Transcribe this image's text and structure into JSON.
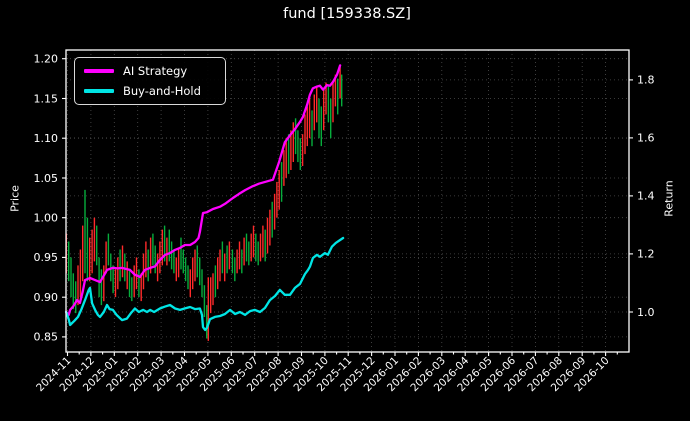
{
  "chart_data": {
    "type": "mixed",
    "title": "fund [159338.SZ]",
    "background_color": "#000000",
    "text_color": "#ffffff",
    "grid_color": "#4d4d4d",
    "spine_color": "#ffffff",
    "x_axis": {
      "tick_labels": [
        "2024-11",
        "2024-12",
        "2025-01",
        "2025-02",
        "2025-03",
        "2025-04",
        "2025-05",
        "2025-06",
        "2025-07",
        "2025-08",
        "2025-09",
        "2025-10",
        "2025-11",
        "2025-12",
        "2026-01",
        "2026-02",
        "2026-03",
        "2026-04",
        "2026-05",
        "2026-06",
        "2026-07",
        "2026-08",
        "2026-09",
        "2026-10"
      ],
      "label_rotation_deg": -45,
      "range": [
        -0.064,
        24.0
      ],
      "minor_tick_step": 0.5
    },
    "left_axis": {
      "label": "Price",
      "ticks": [
        0.85,
        0.9,
        0.95,
        1.0,
        1.05,
        1.1,
        1.15,
        1.2
      ],
      "decimals": 2,
      "range": [
        0.831,
        1.211
      ]
    },
    "right_axis": {
      "label": "Return",
      "ticks": [
        1.0,
        1.2,
        1.4,
        1.6,
        1.8
      ],
      "decimals": 1,
      "range": [
        0.862,
        1.903
      ]
    },
    "legend": {
      "position": "upper-left",
      "entries": [
        "AI Strategy",
        "Buy-and-Hold"
      ]
    },
    "series": [
      {
        "name": "AI Strategy",
        "axis": "right",
        "color": "#ff00ff",
        "points": [
          [
            -0.06,
            1.0
          ],
          [
            0.05,
            0.99
          ],
          [
            0.11,
            1.007
          ],
          [
            0.25,
            1.02
          ],
          [
            0.41,
            1.041
          ],
          [
            0.53,
            1.031
          ],
          [
            0.65,
            1.07
          ],
          [
            0.75,
            1.11
          ],
          [
            0.96,
            1.117
          ],
          [
            1.18,
            1.11
          ],
          [
            1.39,
            1.103
          ],
          [
            1.55,
            1.125
          ],
          [
            1.69,
            1.145
          ],
          [
            1.94,
            1.152
          ],
          [
            2.15,
            1.15
          ],
          [
            2.33,
            1.152
          ],
          [
            2.67,
            1.145
          ],
          [
            2.88,
            1.128
          ],
          [
            3.1,
            1.121
          ],
          [
            3.31,
            1.145
          ],
          [
            3.53,
            1.152
          ],
          [
            3.74,
            1.157
          ],
          [
            3.95,
            1.179
          ],
          [
            4.17,
            1.197
          ],
          [
            4.38,
            1.203
          ],
          [
            4.59,
            1.214
          ],
          [
            4.81,
            1.221
          ],
          [
            5.02,
            1.231
          ],
          [
            5.24,
            1.231
          ],
          [
            5.45,
            1.241
          ],
          [
            5.6,
            1.255
          ],
          [
            5.66,
            1.276
          ],
          [
            5.79,
            1.341
          ],
          [
            5.96,
            1.344
          ],
          [
            6.22,
            1.355
          ],
          [
            6.52,
            1.363
          ],
          [
            6.77,
            1.375
          ],
          [
            7.07,
            1.393
          ],
          [
            7.33,
            1.407
          ],
          [
            7.59,
            1.42
          ],
          [
            7.88,
            1.432
          ],
          [
            8.18,
            1.442
          ],
          [
            8.48,
            1.449
          ],
          [
            8.78,
            1.456
          ],
          [
            9.04,
            1.516
          ],
          [
            9.29,
            1.585
          ],
          [
            9.51,
            1.609
          ],
          [
            9.72,
            1.63
          ],
          [
            9.94,
            1.656
          ],
          [
            10.06,
            1.672
          ],
          [
            10.24,
            1.714
          ],
          [
            10.36,
            1.749
          ],
          [
            10.49,
            1.771
          ],
          [
            10.66,
            1.777
          ],
          [
            10.79,
            1.78
          ],
          [
            10.92,
            1.766
          ],
          [
            11.09,
            1.782
          ],
          [
            11.22,
            1.78
          ],
          [
            11.35,
            1.793
          ],
          [
            11.52,
            1.818
          ],
          [
            11.65,
            1.85
          ]
        ]
      },
      {
        "name": "Buy-and-Hold",
        "axis": "right",
        "color": "#00e5e5",
        "points": [
          [
            -0.06,
            1.0
          ],
          [
            0.05,
            0.975
          ],
          [
            0.11,
            0.955
          ],
          [
            0.3,
            0.97
          ],
          [
            0.45,
            0.983
          ],
          [
            0.6,
            1.01
          ],
          [
            0.75,
            1.041
          ],
          [
            0.9,
            1.075
          ],
          [
            0.96,
            1.083
          ],
          [
            1.05,
            1.03
          ],
          [
            1.18,
            1.007
          ],
          [
            1.3,
            0.99
          ],
          [
            1.39,
            0.983
          ],
          [
            1.55,
            1.0
          ],
          [
            1.69,
            1.024
          ],
          [
            1.8,
            1.01
          ],
          [
            1.94,
            1.007
          ],
          [
            2.1,
            0.99
          ],
          [
            2.33,
            0.972
          ],
          [
            2.54,
            0.977
          ],
          [
            2.7,
            0.995
          ],
          [
            2.88,
            1.012
          ],
          [
            3.05,
            1.0
          ],
          [
            3.23,
            1.007
          ],
          [
            3.4,
            1.0
          ],
          [
            3.53,
            1.007
          ],
          [
            3.7,
            1.0
          ],
          [
            3.95,
            1.012
          ],
          [
            4.15,
            1.018
          ],
          [
            4.38,
            1.024
          ],
          [
            4.6,
            1.012
          ],
          [
            4.81,
            1.007
          ],
          [
            5.0,
            1.012
          ],
          [
            5.24,
            1.017
          ],
          [
            5.45,
            1.01
          ],
          [
            5.66,
            1.012
          ],
          [
            5.75,
            0.99
          ],
          [
            5.79,
            0.948
          ],
          [
            5.88,
            0.938
          ],
          [
            5.96,
            0.945
          ],
          [
            6.09,
            0.975
          ],
          [
            6.3,
            0.983
          ],
          [
            6.52,
            0.986
          ],
          [
            6.73,
            0.993
          ],
          [
            6.95,
            1.007
          ],
          [
            7.16,
            0.993
          ],
          [
            7.37,
            1.0
          ],
          [
            7.59,
            0.99
          ],
          [
            7.8,
            1.003
          ],
          [
            8.01,
            1.007
          ],
          [
            8.23,
            1.0
          ],
          [
            8.44,
            1.014
          ],
          [
            8.65,
            1.041
          ],
          [
            8.87,
            1.055
          ],
          [
            9.08,
            1.076
          ],
          [
            9.29,
            1.059
          ],
          [
            9.51,
            1.059
          ],
          [
            9.72,
            1.083
          ],
          [
            9.94,
            1.097
          ],
          [
            10.02,
            1.11
          ],
          [
            10.15,
            1.131
          ],
          [
            10.28,
            1.145
          ],
          [
            10.36,
            1.156
          ],
          [
            10.49,
            1.186
          ],
          [
            10.66,
            1.197
          ],
          [
            10.79,
            1.19
          ],
          [
            11.0,
            1.203
          ],
          [
            11.13,
            1.197
          ],
          [
            11.3,
            1.225
          ],
          [
            11.47,
            1.238
          ],
          [
            11.65,
            1.248
          ],
          [
            11.78,
            1.255
          ]
        ]
      }
    ],
    "candlesticks": {
      "axis": "left",
      "up_color": "#ff2a2a",
      "down_color": "#06ad3c",
      "bars": [
        [
          -0.05,
          0.93,
          0.98,
          "u"
        ],
        [
          0.05,
          0.92,
          0.97,
          "d"
        ],
        [
          0.15,
          0.9,
          0.95,
          "d"
        ],
        [
          0.25,
          0.885,
          0.93,
          "d"
        ],
        [
          0.35,
          0.88,
          0.92,
          "d"
        ],
        [
          0.45,
          0.89,
          0.94,
          "u"
        ],
        [
          0.55,
          0.9,
          0.96,
          "u"
        ],
        [
          0.65,
          0.92,
          0.99,
          "u"
        ],
        [
          0.75,
          0.93,
          1.035,
          "d"
        ],
        [
          0.85,
          0.92,
          1.0,
          "d"
        ],
        [
          0.95,
          0.92,
          0.975,
          "u"
        ],
        [
          1.05,
          0.93,
          0.985,
          "u"
        ],
        [
          1.15,
          0.945,
          1.0,
          "u"
        ],
        [
          1.25,
          0.94,
          0.99,
          "d"
        ],
        [
          1.35,
          0.9,
          0.95,
          "d"
        ],
        [
          1.45,
          0.89,
          0.935,
          "d"
        ],
        [
          1.55,
          0.895,
          0.94,
          "u"
        ],
        [
          1.65,
          0.93,
          0.97,
          "u"
        ],
        [
          1.75,
          0.94,
          0.98,
          "d"
        ],
        [
          1.85,
          0.92,
          0.955,
          "d"
        ],
        [
          1.95,
          0.905,
          0.94,
          "d"
        ],
        [
          2.05,
          0.9,
          0.935,
          "u"
        ],
        [
          2.15,
          0.91,
          0.95,
          "u"
        ],
        [
          2.25,
          0.92,
          0.96,
          "d"
        ],
        [
          2.35,
          0.925,
          0.965,
          "u"
        ],
        [
          2.45,
          0.92,
          0.955,
          "d"
        ],
        [
          2.55,
          0.91,
          0.945,
          "u"
        ],
        [
          2.65,
          0.9,
          0.935,
          "d"
        ],
        [
          2.75,
          0.895,
          0.925,
          "d"
        ],
        [
          2.85,
          0.9,
          0.94,
          "u"
        ],
        [
          2.95,
          0.91,
          0.95,
          "u"
        ],
        [
          3.05,
          0.9,
          0.935,
          "d"
        ],
        [
          3.15,
          0.895,
          0.93,
          "u"
        ],
        [
          3.25,
          0.91,
          0.955,
          "u"
        ],
        [
          3.35,
          0.925,
          0.97,
          "u"
        ],
        [
          3.45,
          0.92,
          0.96,
          "d"
        ],
        [
          3.55,
          0.93,
          0.975,
          "u"
        ],
        [
          3.65,
          0.94,
          0.98,
          "d"
        ],
        [
          3.75,
          0.93,
          0.965,
          "d"
        ],
        [
          3.85,
          0.92,
          0.955,
          "u"
        ],
        [
          3.95,
          0.93,
          0.97,
          "u"
        ],
        [
          4.05,
          0.94,
          0.985,
          "u"
        ],
        [
          4.15,
          0.945,
          0.99,
          "d"
        ],
        [
          4.25,
          0.94,
          0.975,
          "u"
        ],
        [
          4.35,
          0.945,
          0.985,
          "d"
        ],
        [
          4.45,
          0.935,
          0.97,
          "d"
        ],
        [
          4.55,
          0.93,
          0.96,
          "d"
        ],
        [
          4.65,
          0.92,
          0.95,
          "u"
        ],
        [
          4.75,
          0.925,
          0.96,
          "u"
        ],
        [
          4.85,
          0.935,
          0.975,
          "d"
        ],
        [
          4.95,
          0.93,
          0.96,
          "d"
        ],
        [
          5.05,
          0.92,
          0.95,
          "d"
        ],
        [
          5.15,
          0.91,
          0.94,
          "d"
        ],
        [
          5.25,
          0.9,
          0.935,
          "u"
        ],
        [
          5.35,
          0.91,
          0.95,
          "u"
        ],
        [
          5.45,
          0.92,
          0.96,
          "u"
        ],
        [
          5.55,
          0.925,
          0.965,
          "d"
        ],
        [
          5.65,
          0.915,
          0.95,
          "d"
        ],
        [
          5.75,
          0.9,
          0.935,
          "d"
        ],
        [
          5.85,
          0.875,
          0.915,
          "d"
        ],
        [
          5.95,
          0.848,
          0.89,
          "d"
        ],
        [
          6.02,
          0.845,
          0.925,
          "u"
        ],
        [
          6.12,
          0.88,
          0.925,
          "u"
        ],
        [
          6.22,
          0.89,
          0.93,
          "u"
        ],
        [
          6.32,
          0.9,
          0.94,
          "d"
        ],
        [
          6.42,
          0.91,
          0.95,
          "u"
        ],
        [
          6.52,
          0.92,
          0.96,
          "u"
        ],
        [
          6.62,
          0.93,
          0.97,
          "d"
        ],
        [
          6.72,
          0.92,
          0.955,
          "u"
        ],
        [
          6.82,
          0.93,
          0.965,
          "d"
        ],
        [
          6.92,
          0.935,
          0.97,
          "u"
        ],
        [
          7.05,
          0.93,
          0.96,
          "d"
        ],
        [
          7.15,
          0.92,
          0.95,
          "d"
        ],
        [
          7.25,
          0.93,
          0.96,
          "u"
        ],
        [
          7.35,
          0.935,
          0.97,
          "u"
        ],
        [
          7.45,
          0.93,
          0.96,
          "d"
        ],
        [
          7.55,
          0.94,
          0.975,
          "u"
        ],
        [
          7.65,
          0.945,
          0.98,
          "d"
        ],
        [
          7.75,
          0.94,
          0.97,
          "d"
        ],
        [
          7.85,
          0.945,
          0.98,
          "u"
        ],
        [
          7.95,
          0.95,
          0.99,
          "u"
        ],
        [
          8.05,
          0.945,
          0.98,
          "d"
        ],
        [
          8.15,
          0.94,
          0.97,
          "d"
        ],
        [
          8.25,
          0.945,
          0.98,
          "u"
        ],
        [
          8.35,
          0.95,
          0.99,
          "u"
        ],
        [
          8.45,
          0.945,
          0.985,
          "d"
        ],
        [
          8.55,
          0.955,
          1.0,
          "u"
        ],
        [
          8.65,
          0.965,
          1.01,
          "u"
        ],
        [
          8.75,
          0.975,
          1.02,
          "d"
        ],
        [
          8.85,
          0.985,
          1.03,
          "u"
        ],
        [
          8.95,
          1.0,
          1.045,
          "u"
        ],
        [
          9.05,
          1.01,
          1.06,
          "u"
        ],
        [
          9.15,
          1.02,
          1.07,
          "d"
        ],
        [
          9.25,
          1.04,
          1.085,
          "u"
        ],
        [
          9.35,
          1.05,
          1.1,
          "u"
        ],
        [
          9.45,
          1.055,
          1.105,
          "d"
        ],
        [
          9.55,
          1.06,
          1.11,
          "u"
        ],
        [
          9.65,
          1.07,
          1.12,
          "u"
        ],
        [
          9.75,
          1.08,
          1.125,
          "d"
        ],
        [
          9.85,
          1.07,
          1.11,
          "d"
        ],
        [
          9.95,
          1.06,
          1.1,
          "d"
        ],
        [
          10.05,
          1.065,
          1.105,
          "u"
        ],
        [
          10.15,
          1.08,
          1.13,
          "u"
        ],
        [
          10.25,
          1.09,
          1.14,
          "u"
        ],
        [
          10.35,
          1.1,
          1.15,
          "u"
        ],
        [
          10.45,
          1.09,
          1.135,
          "d"
        ],
        [
          10.55,
          1.11,
          1.155,
          "u"
        ],
        [
          10.65,
          1.12,
          1.165,
          "u"
        ],
        [
          10.75,
          1.1,
          1.15,
          "d"
        ],
        [
          10.85,
          1.09,
          1.14,
          "d"
        ],
        [
          10.95,
          1.11,
          1.16,
          "u"
        ],
        [
          11.05,
          1.13,
          1.17,
          "u"
        ],
        [
          11.15,
          1.12,
          1.165,
          "d"
        ],
        [
          11.25,
          1.1,
          1.15,
          "d"
        ],
        [
          11.35,
          1.12,
          1.17,
          "u"
        ],
        [
          11.45,
          1.14,
          1.18,
          "u"
        ],
        [
          11.55,
          1.13,
          1.175,
          "d"
        ],
        [
          11.65,
          1.15,
          1.19,
          "u"
        ],
        [
          11.72,
          1.14,
          1.18,
          "d"
        ]
      ]
    }
  }
}
